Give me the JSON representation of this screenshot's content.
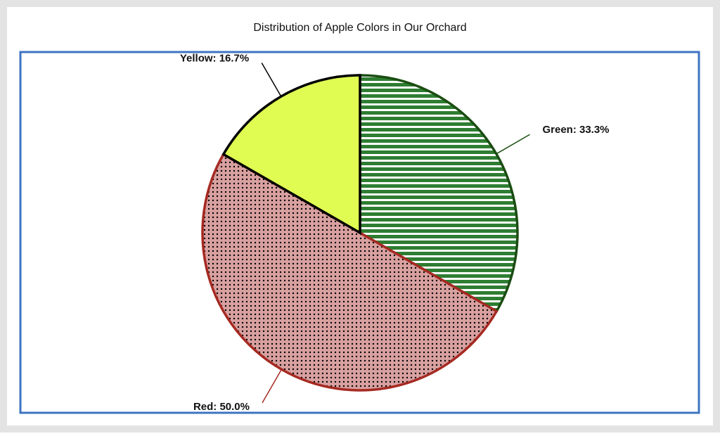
{
  "chart_data": {
    "type": "pie",
    "title": "Distribution of Apple Colors in Our Orchard",
    "values": [
      33.3,
      50.0,
      16.7
    ],
    "value_labels": [
      "Green: 33.3%",
      "Red: 50.0%",
      "Yellow: 16.7%"
    ],
    "colors": [
      "#2e7d32",
      "#d9a0a0",
      "#e0fb52"
    ],
    "edgecolors": [
      "#1b4d12",
      "#a52a22",
      "#000000"
    ],
    "hatches": [
      "-",
      ".",
      ""
    ],
    "startangle": 90,
    "counterclock": false
  }
}
